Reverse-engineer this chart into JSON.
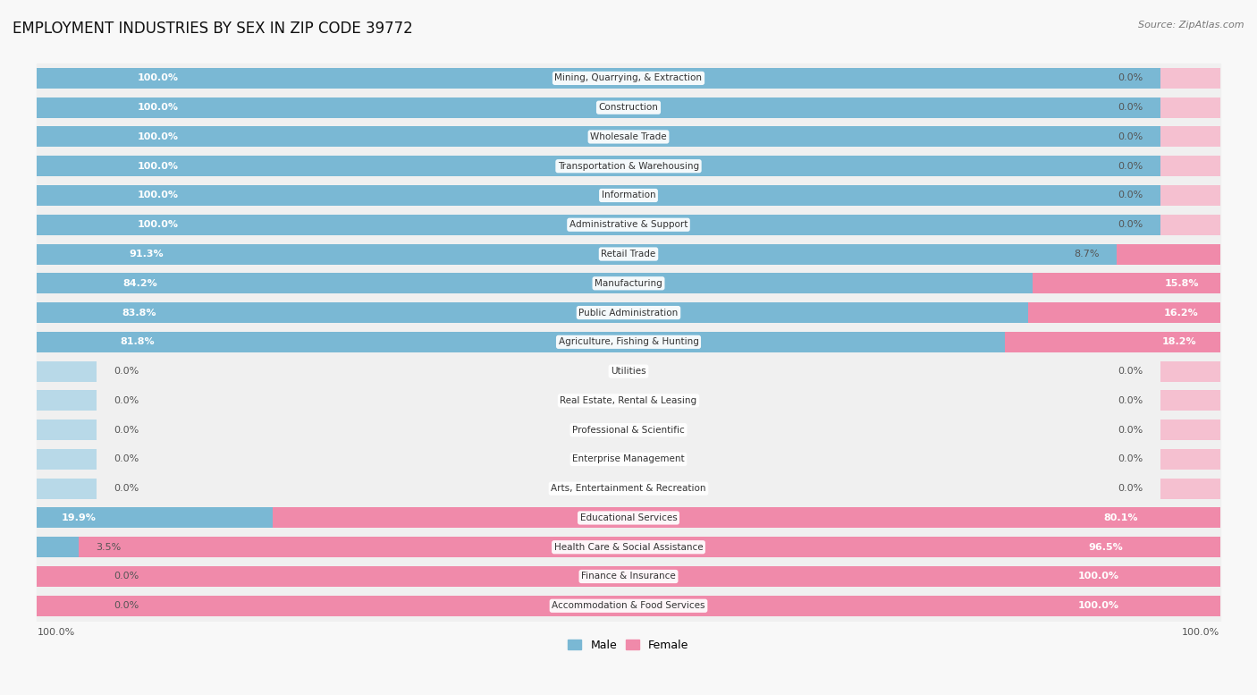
{
  "title": "EMPLOYMENT INDUSTRIES BY SEX IN ZIP CODE 39772",
  "source": "Source: ZipAtlas.com",
  "categories": [
    "Mining, Quarrying, & Extraction",
    "Construction",
    "Wholesale Trade",
    "Transportation & Warehousing",
    "Information",
    "Administrative & Support",
    "Retail Trade",
    "Manufacturing",
    "Public Administration",
    "Agriculture, Fishing & Hunting",
    "Utilities",
    "Real Estate, Rental & Leasing",
    "Professional & Scientific",
    "Enterprise Management",
    "Arts, Entertainment & Recreation",
    "Educational Services",
    "Health Care & Social Assistance",
    "Finance & Insurance",
    "Accommodation & Food Services"
  ],
  "male_pct": [
    100.0,
    100.0,
    100.0,
    100.0,
    100.0,
    100.0,
    91.3,
    84.2,
    83.8,
    81.8,
    0.0,
    0.0,
    0.0,
    0.0,
    0.0,
    19.9,
    3.5,
    0.0,
    0.0
  ],
  "female_pct": [
    0.0,
    0.0,
    0.0,
    0.0,
    0.0,
    0.0,
    8.7,
    15.8,
    16.2,
    18.2,
    0.0,
    0.0,
    0.0,
    0.0,
    0.0,
    80.1,
    96.5,
    100.0,
    100.0
  ],
  "male_color": "#7ab8d4",
  "female_color": "#f08aaa",
  "male_color_light": "#b8d9e8",
  "female_color_light": "#f5c0d0",
  "row_bg_color": "#f0f0f0",
  "row_sep_color": "#ffffff",
  "background_color": "#f8f8f8",
  "label_color_inside": "#ffffff",
  "label_color_outside": "#555555",
  "title_fontsize": 12,
  "source_fontsize": 8,
  "pct_fontsize": 8,
  "cat_fontsize": 7.5,
  "bar_height": 0.7,
  "x_min": 0.0,
  "x_max": 100.0
}
